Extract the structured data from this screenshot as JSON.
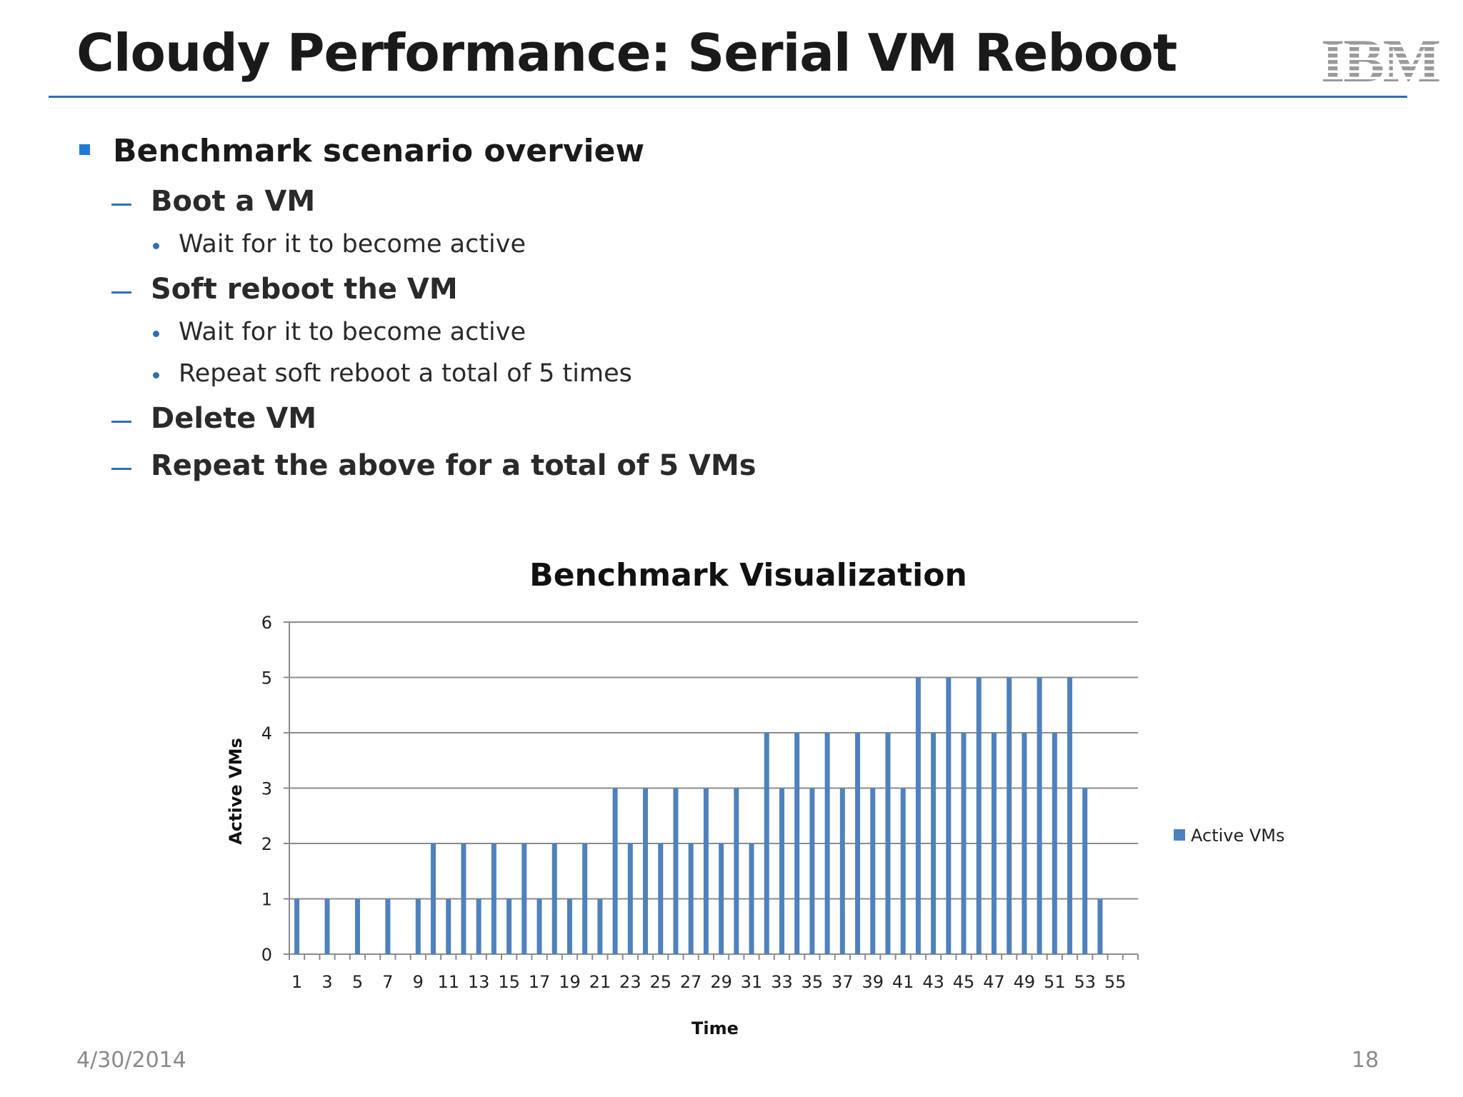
{
  "slide": {
    "title": "Cloudy Performance: Serial VM Reboot",
    "logo_text": "IBM",
    "date": "4/30/2014",
    "page_number": "18"
  },
  "bullets": {
    "heading": "Benchmark scenario overview",
    "items": [
      {
        "text": "Boot a VM",
        "sub": [
          "Wait for it to become active"
        ]
      },
      {
        "text": "Soft reboot the VM",
        "sub": [
          "Wait for it to become active",
          "Repeat soft reboot a total of 5 times"
        ]
      },
      {
        "text": "Delete VM",
        "sub": []
      },
      {
        "text": "Repeat the above for a total of 5 VMs",
        "sub": []
      }
    ]
  },
  "colors": {
    "accent": "#2f6fb0",
    "bar": "#4f81bd",
    "bullet_square": "#1f7bd3"
  },
  "chart_data": {
    "type": "bar",
    "title": "Benchmark Visualization",
    "xlabel": "Time",
    "ylabel": "Active VMs",
    "ylim": [
      0,
      6
    ],
    "yticks": [
      0,
      1,
      2,
      3,
      4,
      5,
      6
    ],
    "grid": true,
    "legend_position": "right",
    "x": [
      1,
      2,
      3,
      4,
      5,
      6,
      7,
      8,
      9,
      10,
      11,
      12,
      13,
      14,
      15,
      16,
      17,
      18,
      19,
      20,
      21,
      22,
      23,
      24,
      25,
      26,
      27,
      28,
      29,
      30,
      31,
      32,
      33,
      34,
      35,
      36,
      37,
      38,
      39,
      40,
      41,
      42,
      43,
      44,
      45,
      46,
      47,
      48,
      49,
      50,
      51,
      52,
      53,
      54,
      55,
      56
    ],
    "xtick_labels": [
      "1",
      "3",
      "5",
      "7",
      "9",
      "11",
      "13",
      "15",
      "17",
      "19",
      "21",
      "23",
      "25",
      "27",
      "29",
      "31",
      "33",
      "35",
      "37",
      "39",
      "41",
      "43",
      "45",
      "47",
      "49",
      "51",
      "53",
      "55"
    ],
    "series": [
      {
        "name": "Active VMs",
        "values": [
          1,
          0,
          1,
          0,
          1,
          0,
          1,
          0,
          1,
          2,
          1,
          2,
          1,
          2,
          1,
          2,
          1,
          2,
          1,
          2,
          1,
          3,
          2,
          3,
          2,
          3,
          2,
          3,
          2,
          3,
          2,
          4,
          3,
          4,
          3,
          4,
          3,
          4,
          3,
          4,
          3,
          5,
          4,
          5,
          4,
          5,
          4,
          5,
          4,
          5,
          4,
          5,
          3,
          1,
          0,
          0
        ]
      }
    ]
  }
}
